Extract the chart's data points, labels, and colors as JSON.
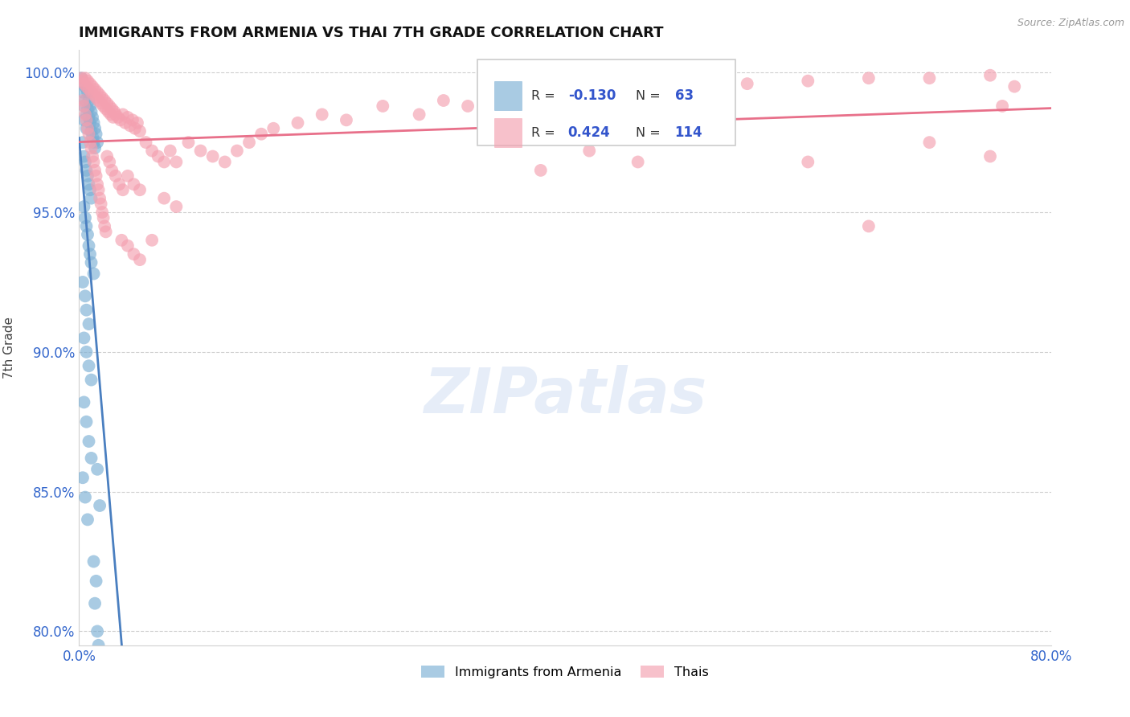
{
  "title": "IMMIGRANTS FROM ARMENIA VS THAI 7TH GRADE CORRELATION CHART",
  "source_text": "Source: ZipAtlas.com",
  "ylabel": "7th Grade",
  "x_min": 0.0,
  "x_max": 0.8,
  "y_min": 0.795,
  "y_max": 1.008,
  "x_ticks": [
    0.0,
    0.1,
    0.2,
    0.3,
    0.4,
    0.5,
    0.6,
    0.7,
    0.8
  ],
  "y_ticks": [
    0.8,
    0.85,
    0.9,
    0.95,
    1.0
  ],
  "y_tick_labels": [
    "80.0%",
    "85.0%",
    "90.0%",
    "95.0%",
    "100.0%"
  ],
  "blue_color": "#7bafd4",
  "pink_color": "#f4a0b0",
  "blue_line_color": "#4a7fc0",
  "pink_line_color": "#e8708a",
  "watermark": "ZIPatlas",
  "armenia_scatter": [
    [
      0.002,
      0.998
    ],
    [
      0.003,
      0.993
    ],
    [
      0.004,
      0.988
    ],
    [
      0.004,
      0.983
    ],
    [
      0.005,
      0.995
    ],
    [
      0.005,
      0.99
    ],
    [
      0.006,
      0.985
    ],
    [
      0.006,
      0.98
    ],
    [
      0.007,
      0.993
    ],
    [
      0.007,
      0.987
    ],
    [
      0.008,
      0.99
    ],
    [
      0.008,
      0.984
    ],
    [
      0.009,
      0.988
    ],
    [
      0.009,
      0.982
    ],
    [
      0.01,
      0.986
    ],
    [
      0.01,
      0.979
    ],
    [
      0.011,
      0.984
    ],
    [
      0.011,
      0.977
    ],
    [
      0.012,
      0.982
    ],
    [
      0.012,
      0.975
    ],
    [
      0.013,
      0.98
    ],
    [
      0.013,
      0.973
    ],
    [
      0.014,
      0.978
    ],
    [
      0.015,
      0.975
    ],
    [
      0.003,
      0.975
    ],
    [
      0.004,
      0.97
    ],
    [
      0.005,
      0.968
    ],
    [
      0.006,
      0.965
    ],
    [
      0.007,
      0.963
    ],
    [
      0.008,
      0.96
    ],
    [
      0.009,
      0.958
    ],
    [
      0.01,
      0.955
    ],
    [
      0.004,
      0.952
    ],
    [
      0.005,
      0.948
    ],
    [
      0.006,
      0.945
    ],
    [
      0.007,
      0.942
    ],
    [
      0.008,
      0.938
    ],
    [
      0.009,
      0.935
    ],
    [
      0.01,
      0.932
    ],
    [
      0.012,
      0.928
    ],
    [
      0.003,
      0.925
    ],
    [
      0.005,
      0.92
    ],
    [
      0.006,
      0.915
    ],
    [
      0.008,
      0.91
    ],
    [
      0.004,
      0.905
    ],
    [
      0.006,
      0.9
    ],
    [
      0.008,
      0.895
    ],
    [
      0.01,
      0.89
    ],
    [
      0.004,
      0.882
    ],
    [
      0.006,
      0.875
    ],
    [
      0.008,
      0.868
    ],
    [
      0.01,
      0.862
    ],
    [
      0.003,
      0.855
    ],
    [
      0.005,
      0.848
    ],
    [
      0.007,
      0.84
    ],
    [
      0.015,
      0.858
    ],
    [
      0.017,
      0.845
    ],
    [
      0.012,
      0.825
    ],
    [
      0.014,
      0.818
    ],
    [
      0.013,
      0.81
    ],
    [
      0.015,
      0.8
    ],
    [
      0.016,
      0.795
    ]
  ],
  "thai_scatter": [
    [
      0.002,
      0.998
    ],
    [
      0.003,
      0.997
    ],
    [
      0.004,
      0.996
    ],
    [
      0.005,
      0.998
    ],
    [
      0.006,
      0.995
    ],
    [
      0.007,
      0.997
    ],
    [
      0.008,
      0.994
    ],
    [
      0.009,
      0.996
    ],
    [
      0.01,
      0.993
    ],
    [
      0.011,
      0.995
    ],
    [
      0.012,
      0.992
    ],
    [
      0.013,
      0.994
    ],
    [
      0.014,
      0.991
    ],
    [
      0.015,
      0.993
    ],
    [
      0.016,
      0.99
    ],
    [
      0.017,
      0.992
    ],
    [
      0.018,
      0.989
    ],
    [
      0.019,
      0.991
    ],
    [
      0.02,
      0.988
    ],
    [
      0.021,
      0.99
    ],
    [
      0.022,
      0.987
    ],
    [
      0.023,
      0.989
    ],
    [
      0.024,
      0.986
    ],
    [
      0.025,
      0.988
    ],
    [
      0.026,
      0.985
    ],
    [
      0.027,
      0.987
    ],
    [
      0.028,
      0.984
    ],
    [
      0.029,
      0.986
    ],
    [
      0.03,
      0.985
    ],
    [
      0.032,
      0.984
    ],
    [
      0.034,
      0.983
    ],
    [
      0.036,
      0.985
    ],
    [
      0.038,
      0.982
    ],
    [
      0.04,
      0.984
    ],
    [
      0.042,
      0.981
    ],
    [
      0.044,
      0.983
    ],
    [
      0.046,
      0.98
    ],
    [
      0.048,
      0.982
    ],
    [
      0.05,
      0.979
    ],
    [
      0.003,
      0.99
    ],
    [
      0.004,
      0.988
    ],
    [
      0.005,
      0.985
    ],
    [
      0.006,
      0.983
    ],
    [
      0.007,
      0.98
    ],
    [
      0.008,
      0.978
    ],
    [
      0.009,
      0.975
    ],
    [
      0.01,
      0.973
    ],
    [
      0.011,
      0.97
    ],
    [
      0.012,
      0.968
    ],
    [
      0.013,
      0.965
    ],
    [
      0.014,
      0.963
    ],
    [
      0.015,
      0.96
    ],
    [
      0.016,
      0.958
    ],
    [
      0.017,
      0.955
    ],
    [
      0.018,
      0.953
    ],
    [
      0.019,
      0.95
    ],
    [
      0.02,
      0.948
    ],
    [
      0.021,
      0.945
    ],
    [
      0.022,
      0.943
    ],
    [
      0.023,
      0.97
    ],
    [
      0.025,
      0.968
    ],
    [
      0.027,
      0.965
    ],
    [
      0.03,
      0.963
    ],
    [
      0.033,
      0.96
    ],
    [
      0.036,
      0.958
    ],
    [
      0.04,
      0.963
    ],
    [
      0.045,
      0.96
    ],
    [
      0.05,
      0.958
    ],
    [
      0.055,
      0.975
    ],
    [
      0.06,
      0.972
    ],
    [
      0.065,
      0.97
    ],
    [
      0.07,
      0.968
    ],
    [
      0.075,
      0.972
    ],
    [
      0.08,
      0.968
    ],
    [
      0.09,
      0.975
    ],
    [
      0.1,
      0.972
    ],
    [
      0.11,
      0.97
    ],
    [
      0.12,
      0.968
    ],
    [
      0.13,
      0.972
    ],
    [
      0.14,
      0.975
    ],
    [
      0.15,
      0.978
    ],
    [
      0.16,
      0.98
    ],
    [
      0.18,
      0.982
    ],
    [
      0.2,
      0.985
    ],
    [
      0.22,
      0.983
    ],
    [
      0.25,
      0.988
    ],
    [
      0.28,
      0.985
    ],
    [
      0.3,
      0.99
    ],
    [
      0.32,
      0.988
    ],
    [
      0.35,
      0.992
    ],
    [
      0.38,
      0.99
    ],
    [
      0.4,
      0.993
    ],
    [
      0.42,
      0.991
    ],
    [
      0.45,
      0.994
    ],
    [
      0.5,
      0.995
    ],
    [
      0.55,
      0.996
    ],
    [
      0.6,
      0.997
    ],
    [
      0.65,
      0.998
    ],
    [
      0.7,
      0.998
    ],
    [
      0.75,
      0.999
    ],
    [
      0.6,
      0.968
    ],
    [
      0.65,
      0.945
    ],
    [
      0.7,
      0.975
    ],
    [
      0.75,
      0.97
    ],
    [
      0.76,
      0.988
    ],
    [
      0.77,
      0.995
    ],
    [
      0.38,
      0.965
    ],
    [
      0.42,
      0.972
    ],
    [
      0.46,
      0.968
    ],
    [
      0.035,
      0.94
    ],
    [
      0.04,
      0.938
    ],
    [
      0.045,
      0.935
    ],
    [
      0.05,
      0.933
    ],
    [
      0.06,
      0.94
    ],
    [
      0.07,
      0.955
    ],
    [
      0.08,
      0.952
    ]
  ]
}
